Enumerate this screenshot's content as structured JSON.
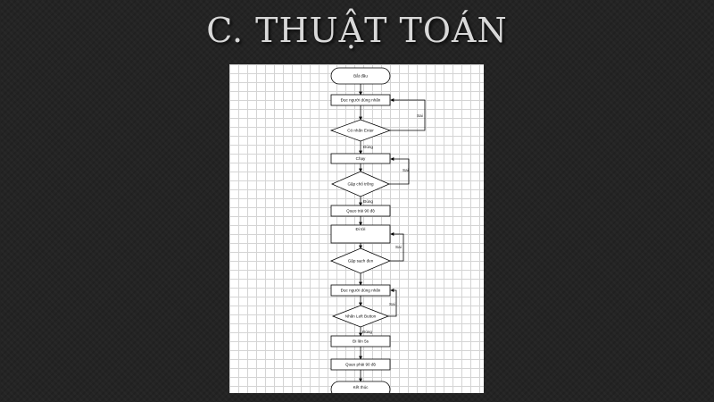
{
  "slide": {
    "title": "C. THUẬT TOÁN"
  },
  "flowchart": {
    "nodes": {
      "start": "Bắt đầu",
      "read1": "Đọc người dùng nhấn",
      "check_enter": "Có nhấn Enter",
      "run": "Chạy",
      "hit_obstacle": "Gặp chổ trống",
      "turn1": "Quẹo trái 90 độ",
      "go_straight": "Đi tới",
      "dirt_clean": "Gặp sạch đen",
      "read2": "Đọc người dùng nhấn",
      "left_button": "Nhấn Left Button",
      "go_back": "Đi lên 5s",
      "turn2": "Quẹo phải 90 độ",
      "end": "Kết thúc"
    },
    "edges": {
      "yes1": "Đúng",
      "no1": "Sai",
      "yes2": "Đúng",
      "no2": "Sai",
      "no3": "Sai",
      "no4": "Sai",
      "yes4": "Đúng"
    }
  }
}
